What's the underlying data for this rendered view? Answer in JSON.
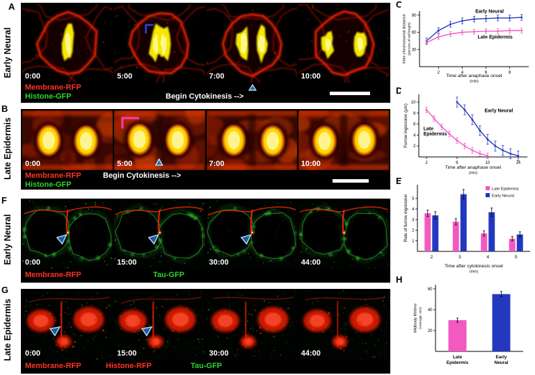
{
  "figure_type": "multi-panel live-imaging figure",
  "panels": {
    "A": {
      "letter": "A",
      "side_label": "Early Neural",
      "frames": [
        {
          "time": "0:00"
        },
        {
          "time": "5:00"
        },
        {
          "time": "7:00"
        },
        {
          "time": "10:00"
        }
      ],
      "legend": [
        {
          "text": "Membrane-RFP",
          "color": "#ff3322"
        },
        {
          "text": "Histone-GFP",
          "color": "#2ed52e"
        }
      ],
      "caption": "Begin Cytokinesis -->"
    },
    "B": {
      "letter": "B",
      "side_label": "Late Epidermis",
      "frames": [
        {
          "time": "0:00"
        },
        {
          "time": "5:00"
        },
        {
          "time": "7:00"
        },
        {
          "time": "10:00"
        }
      ],
      "legend": [
        {
          "text": "Membrane-RFP",
          "color": "#ff3322"
        },
        {
          "text": "Histone-GFP",
          "color": "#2ed52e"
        }
      ],
      "caption": "Begin Cytokinesis -->"
    },
    "F": {
      "letter": "F",
      "side_label": "Early Neural",
      "frames": [
        {
          "time": "0:00"
        },
        {
          "time": "15:00"
        },
        {
          "time": "30:00"
        },
        {
          "time": "44:00"
        }
      ],
      "legend": [
        {
          "text": "Membrane-RFP",
          "color": "#ff3322"
        },
        {
          "text": "Tau-GFP",
          "color": "#2ed52e"
        }
      ]
    },
    "G": {
      "letter": "G",
      "side_label": "Late Epidermis",
      "frames": [
        {
          "time": "0:00"
        },
        {
          "time": "15:00"
        },
        {
          "time": "30:00"
        },
        {
          "time": "44:00"
        }
      ],
      "legend": [
        {
          "text": "Membrane-RFP",
          "color": "#ff3322"
        },
        {
          "text": "Histone-RFP",
          "color": "#ff3322"
        },
        {
          "text": "Tau-GFP",
          "color": "#2ed52e"
        }
      ]
    },
    "C": {
      "letter": "C"
    },
    "D": {
      "letter": "D"
    },
    "E": {
      "letter": "E"
    },
    "H": {
      "letter": "H"
    }
  },
  "chart_data": [
    {
      "id": "C",
      "type": "line",
      "ylabel": "Inter-chromosomal distance",
      "ylabel2": "(percent of cell length)",
      "xlabel": "Time after anaphase onset",
      "xlabel2": "(min)",
      "x": [
        1,
        2,
        3,
        4,
        5,
        6,
        7,
        8,
        9
      ],
      "xticks": [
        2,
        4,
        6,
        8
      ],
      "yticks": [
        30,
        60,
        90
      ],
      "xlim": [
        0.4,
        9.6
      ],
      "ylim": [
        0,
        97
      ],
      "series": [
        {
          "name": "Early Neural",
          "color": "#2438bf",
          "values": [
            45,
            63,
            74,
            80,
            83,
            84,
            85,
            85,
            86
          ],
          "err": 5
        },
        {
          "name": "Late Epidermis",
          "color": "#f25ac2",
          "values": [
            42,
            52,
            57,
            60,
            61,
            62,
            62,
            63,
            63
          ],
          "err": 4
        }
      ],
      "annotations": [
        {
          "text": "Early Neural",
          "x": 5.1,
          "y": 94
        },
        {
          "text": "Late Epidermis",
          "x": 5.3,
          "y": 49
        }
      ]
    },
    {
      "id": "D",
      "type": "line",
      "ylabel": "Furrow ingression (µm)",
      "xlabel": "Time after anaphase onset",
      "xlabel2": "(min)",
      "xticks": [
        2,
        6,
        10,
        14
      ],
      "yticks": [
        2,
        4,
        6,
        8,
        10
      ],
      "xlim": [
        1,
        15.2
      ],
      "ylim": [
        0,
        11.4
      ],
      "series": [
        {
          "name": "Early Neural",
          "color": "#2438bf",
          "x": [
            6,
            7,
            8,
            9,
            10,
            11,
            12,
            13,
            14
          ],
          "values": [
            10,
            8.6,
            6.8,
            4.8,
            3.2,
            2,
            1.2,
            0.6,
            0.2
          ],
          "err": 0.9
        },
        {
          "name": "Late Epidermis",
          "color": "#f25ac2",
          "x": [
            2,
            3,
            4,
            5,
            6,
            7,
            8,
            9,
            10
          ],
          "values": [
            8.6,
            7,
            5.5,
            4.2,
            3,
            2,
            1.2,
            0.6,
            0.2
          ],
          "err": 0.5
        }
      ],
      "annotations": [
        {
          "text": "Early Neural",
          "x": 9.6,
          "y": 8.2
        },
        {
          "lines": [
            "Late",
            "Epidermis"
          ],
          "x": 1.6,
          "y": 4.9
        }
      ]
    },
    {
      "id": "E",
      "type": "bar",
      "ylabel": "Rate of furrow ingression",
      "xlabel": "Time after cytokinesis onset",
      "xlabel2": "(min)",
      "categories": [
        "2",
        "3",
        "4",
        "5"
      ],
      "yticks": [
        1,
        2,
        3,
        4,
        5
      ],
      "ylim": [
        0,
        6.3
      ],
      "legend": true,
      "series": [
        {
          "name": "Late Epidermis",
          "color": "#f25ac2",
          "values": [
            3.6,
            2.8,
            1.7,
            1.2
          ],
          "err": [
            0.3,
            0.3,
            0.25,
            0.2
          ]
        },
        {
          "name": "Early Neural",
          "color": "#2438bf",
          "values": [
            3.4,
            5.4,
            3.7,
            1.6
          ],
          "err": [
            0.35,
            0.45,
            0.4,
            0.25
          ]
        }
      ]
    },
    {
      "id": "H",
      "type": "bar",
      "ylabel": "Midbody lifetime",
      "ylabel2": "(Average; min)",
      "categories": [
        [
          "Late",
          "Epidermis"
        ],
        [
          "Early",
          "Neural"
        ]
      ],
      "yticks": [
        20,
        40,
        60
      ],
      "ylim": [
        0,
        64
      ],
      "legend": false,
      "cat_bold": true,
      "series": [
        {
          "name": "Midbody lifetime",
          "colors": [
            "#f25ac2",
            "#2438bf"
          ],
          "values": [
            30,
            55
          ],
          "err": [
            2,
            2.5
          ]
        }
      ]
    }
  ]
}
